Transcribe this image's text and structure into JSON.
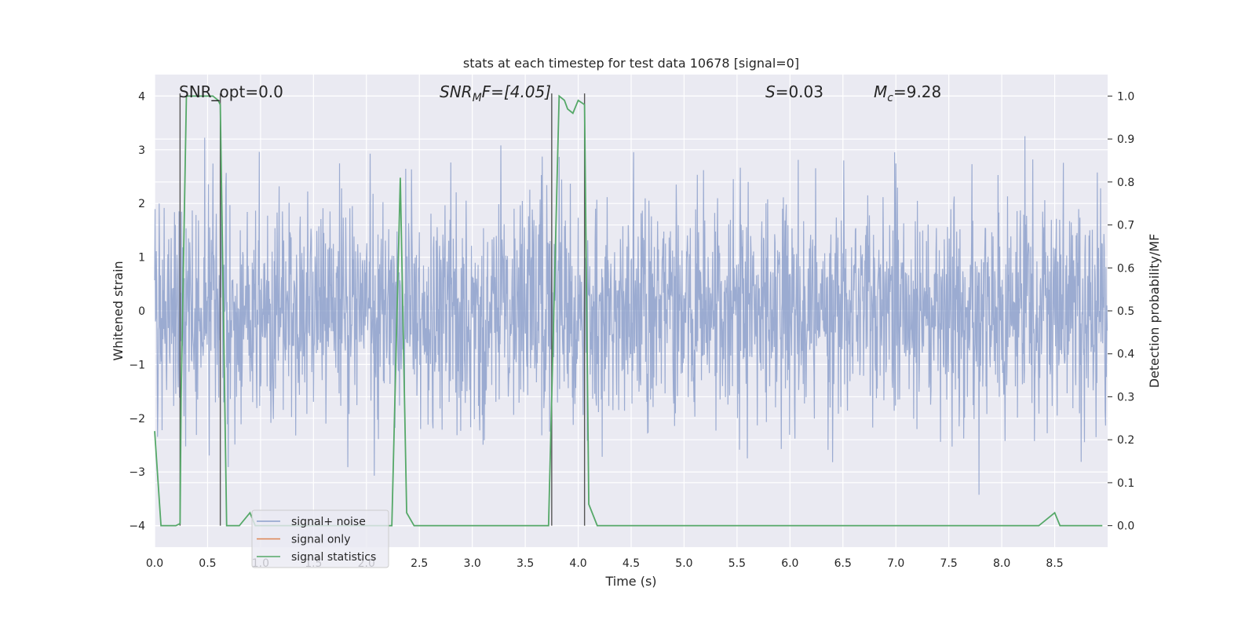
{
  "chart_data": {
    "type": "line",
    "title": "stats at each timestep for test data 10678 [signal=0]",
    "xlabel": "Time (s)",
    "ylabel": "Whitened strain",
    "ylabel_right": "Detection probability/MF",
    "xlim": [
      0.0,
      9.0
    ],
    "ylim": [
      -4.4,
      4.4
    ],
    "ylim_right": [
      -0.05,
      1.05
    ],
    "x_ticks": [
      "0.0",
      "0.5",
      "1.0",
      "1.5",
      "2.0",
      "2.5",
      "3.0",
      "3.5",
      "4.0",
      "4.5",
      "5.0",
      "5.5",
      "6.0",
      "6.5",
      "7.0",
      "7.5",
      "8.0",
      "8.5"
    ],
    "x_tick_values": [
      0.0,
      0.5,
      1.0,
      1.5,
      2.0,
      2.5,
      3.0,
      3.5,
      4.0,
      4.5,
      5.0,
      5.5,
      6.0,
      6.5,
      7.0,
      7.5,
      8.0,
      8.5
    ],
    "y_ticks": [
      "−4",
      "−3",
      "−2",
      "−1",
      "0",
      "1",
      "2",
      "3",
      "4"
    ],
    "y_tick_values": [
      -4,
      -3,
      -2,
      -1,
      0,
      1,
      2,
      3,
      4
    ],
    "y_right_ticks": [
      "0.0",
      "0.1",
      "0.2",
      "0.3",
      "0.4",
      "0.5",
      "0.6",
      "0.7",
      "0.8",
      "0.9",
      "1.0"
    ],
    "y_right_tick_values": [
      0.0,
      0.1,
      0.2,
      0.3,
      0.4,
      0.5,
      0.6,
      0.7,
      0.8,
      0.9,
      1.0
    ],
    "grid": true,
    "legend_position": "lower-left",
    "annotations": {
      "snr_opt": "SNR_opt=0.0",
      "snr_mf_sym": "SNR",
      "snr_mf_sub": "M",
      "snr_mf_rest": "F=[4.05]",
      "s_sym": "S",
      "s_rest": "=0.03",
      "mc_sym": "M",
      "mc_sub": "c",
      "mc_rest": "=9.28"
    },
    "series": [
      {
        "name": "signal+ noise",
        "color": "#8da0cb",
        "description_kind": "noise",
        "sample_rate": 256,
        "typical_std": 1.05,
        "y_range": [
          -4.0,
          4.0
        ]
      },
      {
        "name": "signal only",
        "color": "#dd8452",
        "x": [],
        "y": []
      },
      {
        "name": "signal statistics",
        "color": "#55a868",
        "axis": "right",
        "x": [
          0.0,
          0.06,
          0.1,
          0.2,
          0.24,
          0.25,
          0.3,
          0.55,
          0.6,
          0.62,
          0.68,
          0.7,
          0.8,
          0.9,
          0.95,
          1.0,
          1.5,
          2.0,
          2.24,
          2.32,
          2.38,
          2.45,
          3.0,
          3.5,
          3.72,
          3.77,
          3.82,
          3.87,
          3.9,
          3.95,
          4.0,
          4.06,
          4.1,
          4.18,
          4.4,
          8.35,
          8.5,
          8.55,
          8.95
        ],
        "y": [
          0.22,
          0.0,
          0.0,
          0.0,
          0.005,
          0.3,
          1.0,
          1.0,
          0.99,
          0.98,
          0.0,
          0.0,
          0.0,
          0.03,
          0.0,
          0.0,
          0.0,
          0.0,
          0.0,
          0.81,
          0.03,
          0.0,
          0.0,
          0.0,
          0.0,
          0.5,
          1.0,
          0.99,
          0.97,
          0.96,
          0.99,
          0.98,
          0.05,
          0.0,
          0.0,
          0.0,
          0.03,
          0.0,
          0.0
        ]
      }
    ],
    "vertical_markers": [
      0.24,
      0.62,
      3.75,
      4.06
    ]
  }
}
